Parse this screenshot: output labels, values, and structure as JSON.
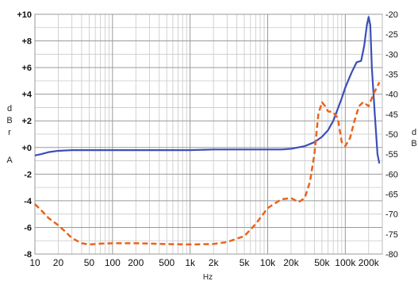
{
  "chart_data": {
    "type": "line",
    "xlabel": "Hz",
    "y_left_label": "dBr",
    "y_left_label_suffix": "A",
    "y_right_label": "dB",
    "x_scale": "log",
    "xlim": [
      10,
      300000
    ],
    "ylim_left": [
      -8,
      10
    ],
    "ylim_right": [
      -80,
      -20
    ],
    "grid": true,
    "x_tick_labels": [
      {
        "v": 10,
        "t": "10"
      },
      {
        "v": 20,
        "t": "20"
      },
      {
        "v": 50,
        "t": "50"
      },
      {
        "v": 100,
        "t": "100"
      },
      {
        "v": 200,
        "t": "200"
      },
      {
        "v": 500,
        "t": "500"
      },
      {
        "v": 1000,
        "t": "1k"
      },
      {
        "v": 2000,
        "t": "2k"
      },
      {
        "v": 5000,
        "t": "5k"
      },
      {
        "v": 10000,
        "t": "10k"
      },
      {
        "v": 20000,
        "t": "20k"
      },
      {
        "v": 50000,
        "t": "50k"
      },
      {
        "v": 100000,
        "t": "100k"
      },
      {
        "v": 200000,
        "t": "200k"
      }
    ],
    "y_left_ticks": [
      {
        "v": 10,
        "t": "+10"
      },
      {
        "v": 8,
        "t": "+8"
      },
      {
        "v": 6,
        "t": "+6"
      },
      {
        "v": 4,
        "t": "+4"
      },
      {
        "v": 2,
        "t": "+2"
      },
      {
        "v": 0,
        "t": "+0"
      },
      {
        "v": -2,
        "t": "-2"
      },
      {
        "v": -4,
        "t": "-4"
      },
      {
        "v": -6,
        "t": "-6"
      },
      {
        "v": -8,
        "t": "-8"
      }
    ],
    "y_right_ticks": [
      {
        "v": -20,
        "t": "-20"
      },
      {
        "v": -25,
        "t": "-25"
      },
      {
        "v": -30,
        "t": "-30"
      },
      {
        "v": -35,
        "t": "-35"
      },
      {
        "v": -40,
        "t": "-40"
      },
      {
        "v": -45,
        "t": "-45"
      },
      {
        "v": -50,
        "t": "-50"
      },
      {
        "v": -55,
        "t": "-55"
      },
      {
        "v": -60,
        "t": "-60"
      },
      {
        "v": -65,
        "t": "-65"
      },
      {
        "v": -70,
        "t": "-70"
      },
      {
        "v": -75,
        "t": "-75"
      },
      {
        "v": -80,
        "t": "-80"
      }
    ],
    "series": [
      {
        "axis": "left",
        "style": "solid",
        "color": "#3b4fb8",
        "points": [
          [
            10,
            -0.6
          ],
          [
            12,
            -0.5
          ],
          [
            15,
            -0.35
          ],
          [
            20,
            -0.25
          ],
          [
            30,
            -0.2
          ],
          [
            50,
            -0.2
          ],
          [
            100,
            -0.2
          ],
          [
            200,
            -0.2
          ],
          [
            500,
            -0.2
          ],
          [
            1000,
            -0.2
          ],
          [
            2000,
            -0.15
          ],
          [
            5000,
            -0.15
          ],
          [
            10000,
            -0.15
          ],
          [
            15000,
            -0.15
          ],
          [
            20000,
            -0.1
          ],
          [
            30000,
            0.1
          ],
          [
            40000,
            0.4
          ],
          [
            50000,
            0.8
          ],
          [
            60000,
            1.3
          ],
          [
            70000,
            2.0
          ],
          [
            80000,
            2.9
          ],
          [
            90000,
            3.7
          ],
          [
            100000,
            4.5
          ],
          [
            120000,
            5.6
          ],
          [
            140000,
            6.4
          ],
          [
            160000,
            6.5
          ],
          [
            175000,
            7.6
          ],
          [
            190000,
            9.2
          ],
          [
            200000,
            9.8
          ],
          [
            210000,
            9.2
          ],
          [
            220000,
            6.0
          ],
          [
            240000,
            2.5
          ],
          [
            260000,
            -0.5
          ],
          [
            275000,
            -1.2
          ]
        ]
      },
      {
        "axis": "right",
        "style": "dashed",
        "color": "#e8641e",
        "points": [
          [
            10,
            -67.5
          ],
          [
            12,
            -69
          ],
          [
            15,
            -71
          ],
          [
            20,
            -72.8
          ],
          [
            25,
            -74.5
          ],
          [
            30,
            -76
          ],
          [
            40,
            -77.3
          ],
          [
            50,
            -77.6
          ],
          [
            70,
            -77.4
          ],
          [
            100,
            -77.3
          ],
          [
            200,
            -77.3
          ],
          [
            500,
            -77.5
          ],
          [
            1000,
            -77.6
          ],
          [
            2000,
            -77.5
          ],
          [
            3000,
            -77
          ],
          [
            5000,
            -75.5
          ],
          [
            7000,
            -72.5
          ],
          [
            10000,
            -68.5
          ],
          [
            15000,
            -66.3
          ],
          [
            20000,
            -66
          ],
          [
            25000,
            -67
          ],
          [
            30000,
            -66
          ],
          [
            35000,
            -62
          ],
          [
            40000,
            -55
          ],
          [
            45000,
            -45
          ],
          [
            50000,
            -42
          ],
          [
            55000,
            -43
          ],
          [
            60000,
            -44.3
          ],
          [
            70000,
            -44.5
          ],
          [
            80000,
            -46
          ],
          [
            90000,
            -52
          ],
          [
            100000,
            -53
          ],
          [
            115000,
            -51
          ],
          [
            130000,
            -47
          ],
          [
            150000,
            -43
          ],
          [
            170000,
            -42
          ],
          [
            200000,
            -43
          ],
          [
            230000,
            -40
          ],
          [
            260000,
            -38
          ],
          [
            275000,
            -37
          ]
        ]
      }
    ]
  }
}
